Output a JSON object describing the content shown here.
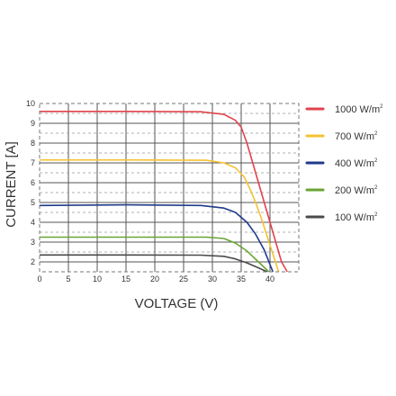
{
  "chart_data": {
    "type": "line",
    "xlabel": "VOLTAGE (V)",
    "ylabel": "CURRENT [A]",
    "xlim": [
      0,
      45
    ],
    "ylim": [
      1.5,
      10
    ],
    "x_ticks": [
      0,
      5,
      10,
      15,
      20,
      25,
      30,
      35,
      40
    ],
    "y_ticks": [
      2,
      3,
      4,
      5,
      6,
      7,
      8,
      9,
      10
    ],
    "grid": true,
    "legend_placement": "right",
    "series": [
      {
        "name": "1000 W/m",
        "unit_superscript": "2",
        "color": "#e0434c",
        "points": [
          [
            0,
            9.6
          ],
          [
            15,
            9.6
          ],
          [
            28,
            9.58
          ],
          [
            32,
            9.45
          ],
          [
            34,
            9.15
          ],
          [
            35,
            8.8
          ],
          [
            36,
            8.0
          ],
          [
            37,
            7.0
          ],
          [
            38,
            6.0
          ],
          [
            39,
            5.0
          ],
          [
            40,
            4.0
          ],
          [
            41,
            3.0
          ],
          [
            42,
            2.0
          ],
          [
            43,
            1.5
          ]
        ]
      },
      {
        "name": "700 W/m",
        "unit_superscript": "2",
        "color": "#f5c232",
        "points": [
          [
            0,
            7.15
          ],
          [
            15,
            7.15
          ],
          [
            29,
            7.13
          ],
          [
            32,
            7.0
          ],
          [
            34,
            6.75
          ],
          [
            35.5,
            6.3
          ],
          [
            36.5,
            5.7
          ],
          [
            37.5,
            5.0
          ],
          [
            38.5,
            4.2
          ],
          [
            39.5,
            3.3
          ],
          [
            40.5,
            2.4
          ],
          [
            41.5,
            1.5
          ]
        ]
      },
      {
        "name": "400 W/m",
        "unit_superscript": "2",
        "color": "#1e3a8a",
        "points": [
          [
            0,
            4.85
          ],
          [
            15,
            4.88
          ],
          [
            28,
            4.85
          ],
          [
            32,
            4.72
          ],
          [
            34,
            4.5
          ],
          [
            36,
            4.0
          ],
          [
            37.5,
            3.4
          ],
          [
            39,
            2.6
          ],
          [
            40.5,
            1.5
          ]
        ]
      },
      {
        "name": "200 W/m",
        "unit_superscript": "2",
        "color": "#6aa534",
        "points": [
          [
            0,
            3.25
          ],
          [
            15,
            3.25
          ],
          [
            29,
            3.25
          ],
          [
            32,
            3.18
          ],
          [
            34,
            2.95
          ],
          [
            36,
            2.55
          ],
          [
            38,
            2.0
          ],
          [
            39.8,
            1.5
          ]
        ]
      },
      {
        "name": "100 W/m",
        "unit_superscript": "2",
        "color": "#4a4a4a",
        "points": [
          [
            0,
            2.35
          ],
          [
            15,
            2.35
          ],
          [
            28,
            2.34
          ],
          [
            32,
            2.28
          ],
          [
            34,
            2.15
          ],
          [
            36,
            1.95
          ],
          [
            38,
            1.7
          ],
          [
            39.5,
            1.5
          ]
        ]
      }
    ]
  }
}
